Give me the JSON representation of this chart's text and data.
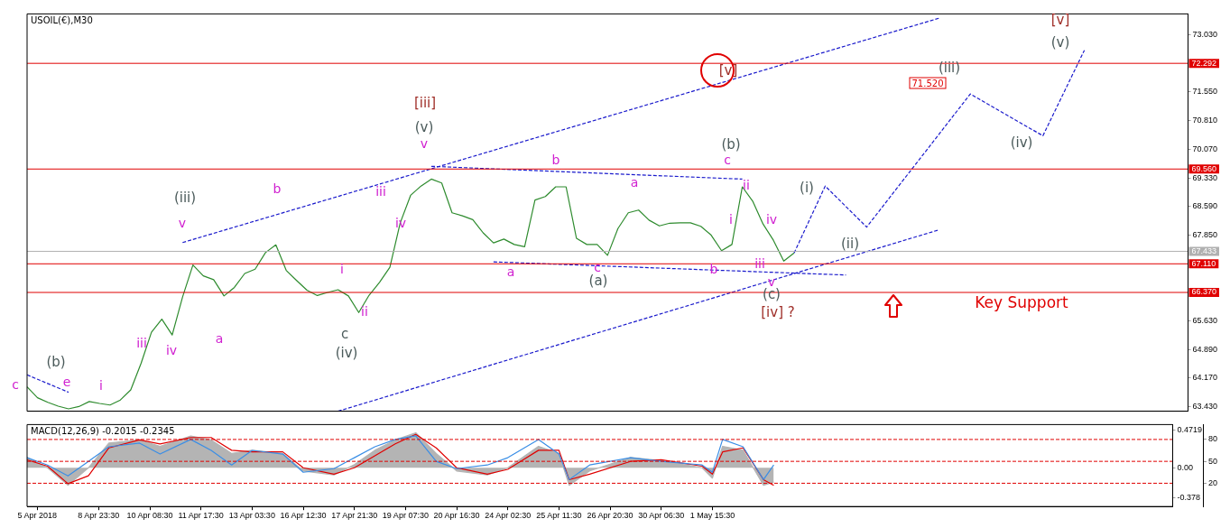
{
  "chart_data": [
    {
      "type": "line",
      "title": "USOIL(€),M30",
      "marker": "none",
      "legend": false,
      "tick_labels": "y",
      "categories": [
        null,
        null,
        null,
        null,
        null,
        null,
        null,
        null,
        null,
        null,
        null,
        null,
        null,
        null,
        null,
        null,
        null,
        null,
        null,
        null,
        null,
        null,
        null,
        null,
        null,
        null,
        null,
        null,
        null,
        null,
        null,
        null,
        null,
        null,
        null,
        null,
        null,
        null,
        null,
        null,
        null,
        null,
        null,
        null,
        null,
        null,
        null,
        null,
        null,
        null,
        null,
        null,
        null,
        null,
        null,
        null,
        null,
        null,
        null,
        null,
        null,
        null,
        null,
        null,
        null,
        null,
        null,
        null,
        null,
        null,
        null,
        null,
        null,
        null,
        null,
        null,
        null,
        null,
        null,
        null,
        null,
        null,
        null,
        null,
        null,
        null,
        null,
        null,
        null,
        null,
        null,
        null,
        null,
        null,
        null,
        null,
        null,
        null,
        null,
        null,
        null,
        null,
        null,
        null,
        null,
        null,
        null,
        null,
        null,
        null,
        null,
        null,
        null
      ],
      "ylim": [
        63.3,
        73.57
      ],
      "yticks": [
        {
          "value": 73.03,
          "label": "73.030"
        },
        {
          "value": 71.55,
          "label": "71.550"
        },
        {
          "value": 70.81,
          "label": "70.810"
        },
        {
          "value": 70.07,
          "label": "70.070"
        },
        {
          "value": 69.33,
          "label": "69.330"
        },
        {
          "value": 68.59,
          "label": "68.590"
        },
        {
          "value": 67.85,
          "label": "67.850"
        },
        {
          "value": 65.63,
          "label": "65.630"
        },
        {
          "value": 64.89,
          "label": "64.890"
        },
        {
          "value": 64.17,
          "label": "64.170"
        },
        {
          "value": 63.43,
          "label": "63.430"
        }
      ],
      "series": [
        {
          "color": "#2e8b2e",
          "values": [
            63.93,
            63.65,
            63.53,
            63.43,
            63.36,
            63.42,
            63.55,
            63.5,
            63.46,
            63.59,
            63.85,
            64.54,
            65.34,
            65.68,
            65.27,
            66.25,
            67.08,
            66.8,
            66.7,
            66.28,
            66.5,
            66.86,
            66.97,
            67.4,
            67.6,
            66.94,
            66.68,
            66.43,
            66.29,
            66.37,
            66.44,
            66.28,
            65.85,
            66.3,
            66.63,
            67.02,
            68.17,
            68.88,
            69.12,
            69.3,
            69.2,
            68.43,
            68.35,
            68.25,
            67.91,
            67.65,
            67.75,
            67.61,
            67.55,
            68.76,
            68.85,
            69.1,
            69.1,
            67.77,
            67.61,
            67.61,
            67.33,
            68.02,
            68.43,
            68.5,
            68.24,
            68.09,
            68.16,
            68.17,
            68.17,
            68.08,
            67.85,
            67.45,
            67.61,
            69.1,
            68.73,
            68.14,
            67.72,
            67.18,
            67.39,
            null,
            null,
            null,
            null,
            null,
            null,
            null,
            null,
            null,
            null,
            null,
            null,
            null,
            null,
            null,
            null,
            null,
            null,
            null,
            null,
            null,
            null,
            null,
            null,
            null,
            null,
            null,
            null,
            null,
            null,
            null,
            null,
            null,
            null,
            null,
            null,
            null,
            null
          ]
        },
        {
          "color": "#1a1acc",
          "line_style": "dashed",
          "values": [
            null,
            null,
            null,
            null,
            null,
            null,
            null,
            null,
            null,
            null,
            null,
            null,
            null,
            null,
            null,
            null,
            null,
            null,
            null,
            null,
            null,
            null,
            null,
            null,
            null,
            null,
            null,
            null,
            null,
            null,
            null,
            null,
            null,
            null,
            null,
            null,
            null,
            null,
            null,
            null,
            null,
            null,
            null,
            null,
            null,
            null,
            null,
            null,
            null,
            null,
            null,
            null,
            null,
            null,
            null,
            null,
            null,
            null,
            null,
            null,
            null,
            null,
            null,
            null,
            null,
            null,
            null,
            null,
            null,
            null,
            null,
            null,
            null,
            null,
            67.39,
            null,
            null,
            69.12,
            null,
            null,
            null,
            68.06,
            null,
            null,
            null,
            null,
            null,
            null,
            null,
            null,
            null,
            71.5,
            null,
            null,
            null,
            null,
            null,
            null,
            70.42,
            null,
            null,
            null,
            72.63,
            null,
            null,
            null,
            null,
            null,
            null,
            null,
            null,
            null,
            null
          ]
        },
        {
          "color": "#1a1acc",
          "line_style": "dashed",
          "values": [
            null,
            null,
            null,
            null,
            null,
            null,
            null,
            null,
            null,
            null,
            null,
            null,
            null,
            null,
            null,
            67.66,
            null,
            null,
            null,
            null,
            null,
            null,
            null,
            null,
            null,
            null,
            null,
            null,
            null,
            null,
            null,
            null,
            null,
            null,
            null,
            null,
            null,
            null,
            null,
            null,
            null,
            null,
            null,
            null,
            null,
            null,
            null,
            null,
            null,
            null,
            null,
            null,
            null,
            null,
            null,
            null,
            null,
            null,
            null,
            null,
            null,
            null,
            null,
            null,
            null,
            null,
            null,
            null,
            null,
            null,
            null,
            null,
            null,
            null,
            null,
            null,
            null,
            null,
            null,
            null,
            null,
            null,
            null,
            null,
            null,
            null,
            null,
            null,
            73.46,
            null,
            null,
            null,
            null,
            null,
            null,
            null,
            null,
            null,
            null,
            null,
            null,
            null,
            null,
            null,
            null,
            null,
            null,
            null,
            null,
            null,
            null,
            null,
            null
          ]
        },
        {
          "color": "#1a1acc",
          "line_style": "dashed",
          "values": [
            null,
            null,
            null,
            null,
            null,
            null,
            null,
            null,
            null,
            null,
            null,
            null,
            null,
            null,
            null,
            null,
            null,
            null,
            null,
            null,
            null,
            null,
            null,
            null,
            null,
            null,
            null,
            null,
            null,
            null,
            63.3,
            null,
            null,
            null,
            null,
            null,
            null,
            null,
            null,
            null,
            null,
            null,
            null,
            null,
            null,
            null,
            null,
            null,
            null,
            null,
            null,
            null,
            null,
            null,
            null,
            null,
            null,
            null,
            null,
            null,
            null,
            null,
            null,
            null,
            null,
            null,
            null,
            null,
            null,
            null,
            null,
            null,
            null,
            null,
            null,
            null,
            null,
            null,
            null,
            null,
            null,
            null,
            null,
            null,
            null,
            null,
            null,
            null,
            67.99,
            null,
            null,
            null,
            null,
            null,
            null,
            null,
            null,
            null,
            null,
            null,
            null,
            null,
            null,
            null,
            null,
            null,
            null,
            null,
            null,
            null,
            null,
            null,
            null
          ]
        },
        {
          "color": "#1a1acc",
          "line_style": "dashed",
          "values": [
            null,
            null,
            null,
            null,
            null,
            null,
            null,
            null,
            null,
            null,
            null,
            null,
            null,
            null,
            null,
            null,
            null,
            null,
            null,
            null,
            null,
            null,
            null,
            null,
            null,
            null,
            null,
            null,
            null,
            null,
            null,
            null,
            null,
            null,
            null,
            null,
            null,
            null,
            null,
            69.63,
            null,
            null,
            null,
            null,
            null,
            null,
            null,
            null,
            null,
            null,
            null,
            null,
            null,
            null,
            null,
            null,
            null,
            null,
            null,
            null,
            null,
            null,
            null,
            null,
            null,
            null,
            null,
            null,
            null,
            69.3,
            null,
            null,
            null,
            null,
            null,
            null,
            null,
            null,
            null,
            null,
            null,
            null,
            null,
            null,
            null,
            null,
            null,
            null,
            null,
            null,
            null,
            null,
            null,
            null,
            null,
            null,
            null,
            null,
            null,
            null,
            null,
            null,
            null,
            null,
            null,
            null,
            null,
            null,
            null,
            null,
            null,
            null,
            null
          ]
        },
        {
          "color": "#1a1acc",
          "line_style": "dashed",
          "values": [
            null,
            null,
            null,
            null,
            null,
            null,
            null,
            null,
            null,
            null,
            null,
            null,
            null,
            null,
            null,
            null,
            null,
            null,
            null,
            null,
            null,
            null,
            null,
            null,
            null,
            null,
            null,
            null,
            null,
            null,
            null,
            null,
            null,
            null,
            null,
            null,
            null,
            null,
            null,
            null,
            null,
            null,
            null,
            null,
            null,
            67.16,
            null,
            null,
            null,
            null,
            null,
            null,
            null,
            null,
            null,
            null,
            null,
            null,
            null,
            null,
            null,
            null,
            null,
            null,
            null,
            null,
            null,
            null,
            null,
            null,
            null,
            null,
            null,
            null,
            null,
            null,
            null,
            null,
            null,
            66.82,
            null,
            null,
            null,
            null,
            null,
            null,
            null,
            null,
            null,
            null,
            null,
            null,
            null,
            null,
            null,
            null,
            null,
            null,
            null,
            null,
            null,
            null,
            null,
            null,
            null,
            null,
            null,
            null,
            null,
            null,
            null,
            null,
            null
          ]
        },
        {
          "color": "#1a1acc",
          "line_style": "dashed",
          "values": [
            64.24,
            null,
            null,
            null,
            63.79,
            null,
            null,
            null,
            null,
            null,
            null,
            null,
            null,
            null,
            null,
            null,
            null,
            null,
            null,
            null,
            null,
            null,
            null,
            null,
            null,
            null,
            null,
            null,
            null,
            null,
            null,
            null,
            null,
            null,
            null,
            null,
            null,
            null,
            null,
            null,
            null,
            null,
            null,
            null,
            null,
            null,
            null,
            null,
            null,
            null,
            null,
            null,
            null,
            null,
            null,
            null,
            null,
            null,
            null,
            null,
            null,
            null,
            null,
            null,
            null,
            null,
            null,
            null,
            null,
            null,
            null,
            null,
            null,
            null,
            null,
            null,
            null,
            null,
            null,
            null,
            null,
            null,
            null,
            null,
            null,
            null,
            null,
            null,
            null,
            null,
            null,
            null,
            null,
            null,
            null,
            null,
            null,
            null,
            null,
            null,
            null,
            null,
            null,
            null,
            null,
            null,
            null,
            null,
            null,
            null,
            null,
            null,
            null
          ]
        }
      ],
      "ref_lines": [
        {
          "axis": "y",
          "value": 72.292,
          "label": "72.292",
          "color": "#e00000"
        },
        {
          "axis": "y",
          "value": 69.56,
          "label": "69.560",
          "color": "#e00000"
        },
        {
          "axis": "y",
          "value": 67.433,
          "label": "67.433",
          "color": "#b0b0b0"
        },
        {
          "axis": "y",
          "value": 67.11,
          "label": "67.110",
          "color": "#e00000"
        },
        {
          "axis": "y",
          "value": 66.37,
          "label": "66.370",
          "color": "#e00000"
        }
      ],
      "annotations": [
        "c",
        "(b)",
        "e",
        "i",
        "iii",
        "iv",
        "(iii)",
        "v",
        "a",
        "b",
        "i",
        "ii",
        "c",
        "(iv)",
        "iii",
        "iv",
        "[iii]",
        "(v)",
        "v",
        "b",
        "a",
        "a",
        "c",
        "(a)",
        "b",
        "(b)",
        {
          "text": "c",
          "y": 69.57
        },
        "ii",
        "i",
        "iv",
        "iii",
        "v",
        "(c)",
        "[iv] ?",
        "[v]",
        "(i)",
        "(ii)",
        "(iii)",
        "71.520",
        "(iv)",
        "[v]",
        "(v)",
        "Key Support"
      ]
    },
    {
      "type": "line",
      "title": "MACD(12,26,9) -0.2015 -0.2345",
      "marker": "none",
      "legend": false,
      "categories": [
        null,
        "5 Apr 2018",
        null,
        null,
        null,
        null,
        null,
        "8 Apr 23:30",
        null,
        null,
        null,
        null,
        "10 Apr 08:30",
        null,
        null,
        null,
        null,
        "11 Apr 17:30",
        null,
        null,
        null,
        null,
        "13 Apr 03:30",
        null,
        null,
        null,
        null,
        "16 Apr 12:30",
        null,
        null,
        null,
        null,
        "17 Apr 21:30",
        null,
        null,
        null,
        null,
        "19 Apr 07:30",
        null,
        null,
        null,
        null,
        "20 Apr 16:30",
        null,
        null,
        null,
        null,
        "24 Apr 02:30",
        null,
        null,
        null,
        null,
        "25 Apr 11:30",
        null,
        null,
        null,
        null,
        "26 Apr 20:30",
        null,
        null,
        null,
        null,
        "30 Apr 06:30",
        null,
        null,
        null,
        null,
        "1 May 15:30",
        null,
        null,
        null,
        null,
        null,
        null,
        null,
        null,
        null,
        null,
        null,
        null,
        null,
        null,
        null,
        null,
        null,
        null,
        null,
        null,
        null,
        null,
        null,
        null,
        null,
        null,
        null,
        null,
        null,
        null,
        null,
        null,
        null,
        null,
        null,
        null,
        null,
        null,
        null,
        null,
        null,
        null,
        null,
        null,
        null
      ],
      "ylim": [
        -0.487,
        0.543
      ],
      "yticks": [
        0.4719,
        {
          "value": 0,
          "label": "0.00"
        },
        -0.378
      ],
      "y2lim": [
        -11.9,
        100.4
      ],
      "y2ticks": [
        80,
        50,
        20
      ],
      "series": [
        {
          "type": "area",
          "color": "#b4b4b4",
          "values": [
            0.13,
            null,
            0,
            null,
            -0.22,
            null,
            0,
            null,
            0.31,
            null,
            null,
            0.35,
            null,
            0.27,
            null,
            null,
            0.4,
            null,
            0.35,
            null,
            0.18,
            null,
            0.22,
            null,
            null,
            0.18,
            null,
            -0.04,
            null,
            null,
            -0.09,
            null,
            0.04,
            null,
            0.22,
            null,
            0.35,
            null,
            0.44,
            null,
            0.18,
            null,
            -0.04,
            null,
            null,
            -0.09,
            null,
            0,
            null,
            null,
            0.27,
            null,
            0.18,
            -0.22,
            null,
            -0.04,
            null,
            null,
            null,
            0.13,
            null,
            null,
            0.09,
            null,
            null,
            null,
            0,
            -0.13,
            0.27,
            null,
            0.22,
            null,
            -0.22,
            -0.18,
            null,
            null,
            null,
            null,
            null,
            null,
            null,
            null,
            null,
            null,
            null,
            null,
            null,
            null,
            null,
            null,
            null,
            null,
            null,
            null,
            null,
            null,
            null,
            null,
            null,
            null,
            null,
            null,
            null,
            null,
            null,
            null,
            null,
            null,
            null,
            null,
            null,
            null,
            null
          ]
        },
        {
          "color": "#e00000",
          "values": [
            0.1,
            null,
            0.02,
            null,
            -0.2,
            null,
            -0.1,
            null,
            0.25,
            null,
            null,
            0.35,
            null,
            0.3,
            null,
            null,
            0.38,
            null,
            0.38,
            null,
            0.22,
            null,
            0.2,
            null,
            null,
            0.2,
            null,
            0,
            null,
            null,
            -0.08,
            null,
            0,
            null,
            0.15,
            null,
            0.3,
            null,
            0.42,
            null,
            0.25,
            null,
            0,
            null,
            null,
            -0.08,
            null,
            -0.02,
            null,
            null,
            0.22,
            null,
            0.22,
            -0.15,
            null,
            -0.08,
            null,
            null,
            null,
            0.08,
            null,
            null,
            0.1,
            null,
            null,
            null,
            0.02,
            -0.08,
            0.2,
            null,
            0.25,
            null,
            -0.15,
            -0.22,
            null,
            null,
            null,
            null,
            null,
            null,
            null,
            null,
            null,
            null,
            null,
            null,
            null,
            null,
            null,
            null,
            null,
            null,
            null,
            null,
            null,
            null,
            null,
            null,
            null,
            null,
            null,
            null,
            null,
            null,
            null,
            null,
            null,
            null,
            null,
            null,
            null,
            null,
            null
          ]
        },
        {
          "color": "#3a8ee6",
          "axis": "y2",
          "values": [
            55,
            null,
            45,
            null,
            30,
            null,
            50,
            null,
            70,
            null,
            null,
            75,
            null,
            60,
            null,
            null,
            80,
            null,
            65,
            null,
            45,
            null,
            65,
            null,
            null,
            60,
            null,
            35,
            null,
            null,
            40,
            null,
            55,
            null,
            70,
            null,
            80,
            null,
            85,
            null,
            50,
            null,
            40,
            null,
            null,
            45,
            null,
            55,
            null,
            null,
            80,
            null,
            60,
            25,
            null,
            45,
            null,
            null,
            null,
            55,
            null,
            null,
            50,
            null,
            null,
            null,
            45,
            35,
            80,
            null,
            70,
            null,
            25,
            45,
            null,
            null,
            null,
            null,
            null,
            null,
            null,
            null,
            null,
            null,
            null,
            null,
            null,
            null,
            null,
            null,
            null,
            null,
            null,
            null,
            null,
            null,
            null,
            null,
            null,
            null,
            null,
            null,
            null,
            null,
            null,
            null,
            null,
            null,
            null,
            null,
            null,
            null,
            null
          ]
        }
      ],
      "ref_lines": [
        {
          "axis": "y2",
          "value": 80,
          "color": "#e00000",
          "line_style": "dashed"
        },
        {
          "axis": "y2",
          "value": 50,
          "color": "#e00000",
          "line_style": "dashed"
        },
        {
          "axis": "y2",
          "value": 20,
          "color": "#e00000",
          "line_style": "dashed"
        }
      ]
    }
  ]
}
